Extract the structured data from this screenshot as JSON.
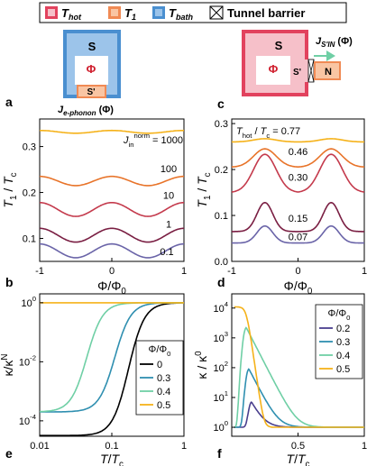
{
  "legend": {
    "items": [
      {
        "main": "T",
        "sub": "hot",
        "color": "#e2425e",
        "inner": "#f6c0c9"
      },
      {
        "main": "T",
        "sub": "1",
        "color": "#f08a54",
        "inner": "#f9c5a3"
      },
      {
        "main": "T",
        "sub": "bath",
        "color": "#4a8fd0",
        "inner": "#9cc4ea"
      }
    ],
    "barrier_label": "Tunnel barrier"
  },
  "panels": {
    "a": {
      "label": "a",
      "S": "S",
      "phi": "Φ",
      "Sprime": "S'",
      "flux_label": "J",
      "flux_sub": "e-phonon",
      "flux_arg": " (Φ)"
    },
    "c": {
      "label": "c",
      "S": "S",
      "phi": "Φ",
      "Sprime": "S'",
      "N": "N",
      "flux_label": "J",
      "flux_sub": "S'IN",
      "flux_arg": " (Φ)"
    }
  },
  "chart_data": [
    {
      "panel": "b",
      "type": "line",
      "xlabel": "Φ/Φ0",
      "ylabel": "T1 / Tc",
      "xlim": [
        -1,
        1
      ],
      "ylim": [
        0.05,
        0.36
      ],
      "xticks": [
        "-1",
        "0",
        "1"
      ],
      "yticks": [
        "0.1",
        "0.2",
        "0.3"
      ],
      "annotation_prefix": "J",
      "annotation_sup": "norm",
      "annotation_sub": "in",
      "series": [
        {
          "name": "1000",
          "color": "#f5b21a",
          "base": 0.332,
          "amp": 0.003
        },
        {
          "name": "100",
          "color": "#e8742a",
          "base": 0.225,
          "amp": 0.01
        },
        {
          "name": "10",
          "color": "#c43a4c",
          "base": 0.163,
          "amp": 0.015
        },
        {
          "name": "1",
          "color": "#7a1f43",
          "base": 0.107,
          "amp": 0.015
        },
        {
          "name": "0.1",
          "color": "#6a64a8",
          "base": 0.073,
          "amp": 0.015
        }
      ]
    },
    {
      "panel": "d",
      "type": "line",
      "xlabel": "Φ/Φ0",
      "ylabel": "T1 / Tc",
      "xlim": [
        -1,
        1
      ],
      "ylim": [
        0.0,
        0.31
      ],
      "xticks": [
        "-1",
        "0",
        "1"
      ],
      "yticks": [
        "0.0",
        "0.1",
        "0.2",
        "0.3"
      ],
      "annotation_prefix": "Thot / Tc = ",
      "series": [
        {
          "name": "0.77",
          "color": "#f5b21a",
          "base": 0.26,
          "peak": 0.007
        },
        {
          "name": "0.46",
          "color": "#e8742a",
          "base": 0.205,
          "peak": 0.04
        },
        {
          "name": "0.30",
          "color": "#c43a4c",
          "base": 0.15,
          "peak": 0.083
        },
        {
          "name": "0.15",
          "color": "#7a1f43",
          "base": 0.065,
          "peak": 0.063
        },
        {
          "name": "0.07",
          "color": "#6a64a8",
          "base": 0.04,
          "peak": 0.037
        }
      ]
    },
    {
      "panel": "e",
      "type": "line",
      "xlabel": "T/Tc",
      "ylabel": "κ/κN",
      "xscale": "log",
      "yscale": "log",
      "xlim": [
        0.01,
        1
      ],
      "ylim": [
        3e-05,
        2
      ],
      "xticks": [
        "0.01",
        "0.1",
        "1"
      ],
      "yticks": [
        "10-4",
        "10-2",
        "100"
      ],
      "legend_title": "Φ/Φ0",
      "series": [
        {
          "name": "0",
          "color": "#000000",
          "x0": 0.17
        },
        {
          "name": "0.3",
          "color": "#2f8fb0",
          "x0": 0.11
        },
        {
          "name": "0.4",
          "color": "#6fcfa5",
          "x0": 0.045
        },
        {
          "name": "0.5",
          "color": "#f5b21a",
          "x0": null
        }
      ]
    },
    {
      "panel": "f",
      "type": "line",
      "xlabel": "T/Tc",
      "ylabel": "κ / κ0",
      "yscale": "log",
      "xlim": [
        0.0,
        1
      ],
      "ylim": [
        0.5,
        30000
      ],
      "xticks": [
        "0.5",
        "1"
      ],
      "yticks": [
        "100",
        "101",
        "102",
        "103",
        "104"
      ],
      "legend_title": "Φ/Φ0",
      "series": [
        {
          "name": "0.2",
          "color": "#4a3f8e",
          "peak": 7
        },
        {
          "name": "0.3",
          "color": "#2f8fb0",
          "peak": 90
        },
        {
          "name": "0.4",
          "color": "#6fcfa5",
          "peak": 2200
        },
        {
          "name": "0.5",
          "color": "#f5b21a",
          "peak": 11000
        }
      ]
    }
  ]
}
